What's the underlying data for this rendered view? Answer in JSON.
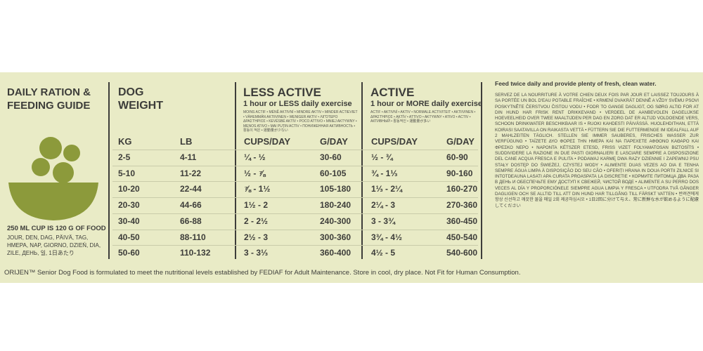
{
  "header": {
    "title_line1": "DAILY RATION &",
    "title_line2": "FEEDING GUIDE"
  },
  "cup_note": "250 ML CUP IS 120 G OF FOOD",
  "cup_note_translations": "JOUR, DEN, DAG, PÄIVÄ, TAG, HMEPA, NAP, GIORNO, DZIEŃ, DIA, ZILE, ДЕНЬ, 일, 1日あたり",
  "table": {
    "dog_weight_line1": "DOG",
    "dog_weight_line2": "WEIGHT",
    "less_active": {
      "title": "LESS ACTIVE",
      "subtitle": "1 hour or LESS daily exercise",
      "translations": "MOINS ACTIF • MÉNĚ AKTIVNÍ • MINDRE AKTIV • MINDER ACTIEVIET • VÄHEMMÄN AKTIIVINEN • WENIGER AKTIV • ΛΙΓΌΤΕΡΟ ΔΡΑΣΤΉΡΙΟΣ • KEVÉSBÉ AKTÍV • POCO ATTIVO • MNIEJ AKTYWNY • MENOS ATIVO • MAI PUȚIN ACTIV • ПОНИЖЕННАЯ АКТИВНОСТЬ • 활동이 적은 • 運動量が少ない"
    },
    "active": {
      "title": "ACTIVE",
      "subtitle": "1 hour or MORE daily exercise",
      "translations": "ACTIF • AKTIVNÍ • AKTIV • NORMALE ACTIVITEIT • AKTIIVINEN • ΔΡΑΣΤΉΡΙΟΣ • AKTÍV • ATTIVO • AKTYWNY • ATIVO • ACTIV • АКТИВНЫЙ • 활동적인 • 運動量が多い"
    },
    "columns": [
      "KG",
      "LB",
      "CUPS/DAY",
      "G/DAY",
      "CUPS/DAY",
      "G/DAY"
    ],
    "rows": [
      [
        "2-5",
        "4-11",
        "¼ - ½",
        "30-60",
        "½ - ¾",
        "60-90"
      ],
      [
        "5-10",
        "11-22",
        "½ - ⅞",
        "60-105",
        "¾ - 1⅓",
        "90-160"
      ],
      [
        "10-20",
        "22-44",
        "⅞ - 1½",
        "105-180",
        "1⅓ - 2¼",
        "160-270"
      ],
      [
        "20-30",
        "44-66",
        "1½ - 2",
        "180-240",
        "2¼ - 3",
        "270-360"
      ],
      [
        "30-40",
        "66-88",
        "2 - 2½",
        "240-300",
        "3 - 3¾",
        "360-450"
      ],
      [
        "40-50",
        "88-110",
        "2½ - 3",
        "300-360",
        "3¾ - 4½",
        "450-540"
      ],
      [
        "50-60",
        "110-132",
        "3 - 3⅓",
        "360-400",
        "4½ - 5",
        "540-600"
      ]
    ]
  },
  "feeding_note": {
    "title": "Feed twice daily and provide plenty of fresh, clean water.",
    "translations": "SERVEZ DE LA NOURRITURE À VOTRE CHIEN DEUX FOIS PAR JOUR ET LAISSEZ TOUJOURS À SA PORTÉE UN BOL D'EAU POTABLE FRAÎCHE • KRMENÍ DVAKRÁT DENNĚ A VŽDY SVÉMU PSOVI POSKYTNĚTE ČERSTVOU ČISTOU VODU • FODR TO GANGE DAGLIGT, OG SØRG ALTID FOR AT DIN HUND HAR FRISK RENT DRIKKEVAND • VERDEEL DE AANBEVOLEN DAGELIJKSE HOEVEELHEID OVER TWEE MAALTIJDEN PER DAG EN ZORG DAT ER ALTIJD VOLDOENDE VERS, SCHOON DRINKWATER BESCHIKBAAR IS • RUOKI KAHDESTI PÄIVÄSSÄ. HUOLEHDITHAN, ETTÄ KOIRASI SAATAVILLA ON RAIKASTA VETTÄ • FÜTTERN SIE DIE FUTTERMENGE IM IDEALFALL AUF 2 MAHLZEITEN TÄGLICH. STELLEN SIE IMMER SAUBERES, FRISCHES WASSER ZUR VERFÜGUNG • ΤΑΪΖΕΤΕ ΔΥΟ ΦΟΡΕΣ ΤΗΝ ΗΜΕΡΑ ΚΑΙ ΝΑ ΠΑΡΕΧΕΤΕ ΑΦΘΟΝΟ ΚΑΘΑΡΟ ΚΑΙ ΦΡΕΣΚΟ ΝΕΡΟ • NAPONTA KÉTSZER ETESD, FRISS VIZET FOLYAMATOSAN BIZTOSÍTS • SUDDIVIDERE LA RAZIONE IN DUE PASTI GIORNALIERI E LASCIARE SEMPRE A DISPOSIZIONE DEL CANE ACQUA FRESCA E PULITA • PODAWAJ KARMĘ DWA RAZY DZIENNIE I ZAPEWNIJ PSU STAŁY DOSTĘP DO ŚWIEŻEJ, CZYSTEJ WODY • ALIMENTE DUAS VEZES AO DIA E TENHA SEMPRE ÁGUA LIMPA À DISPOSIÇÃO DO SEU CÃO • OFERIȚI HRANA IN DOUA PORTII ZILNICE SI INTOTDEAUNA LASATI APA CURATA PROASPATA LA DISCRETIE • КОРМИТЕ ПИТОМЦА ДВА РАЗА В ДЕНЬ И ОБЕСПЕЧЬТЕ ЕМУ ДОСТУП К СВЕЖЕЙ, ЧИСТОЙ ВОДЕ • ALIMENTE A SU PERRO DOS VECES AL DÍA Y PROPORCIÓNELE SIEMPRE AGUA LIMPIA Y FRESCA • UTFODRA TVÅ GÅNGER DAGLIGEN OCH SE ALLTID TILL ATT DIN HUND HAR TILLGÅNG TILL FÄRSKT VATTEN • 반려견에게 항상 신선하고 깨끗한 물을 매일 2회 제공하십시오 • 1日2回に分けて与え、常に新鮮な水が飲めるように配慮してください"
  },
  "footer": "ORIJEN™ Senior Dog Food is formulated to meet the nutritional levels established by FEDIAF for Adult Maintenance. Store in cool, dry place. Not Fit for Human Consumption."
}
